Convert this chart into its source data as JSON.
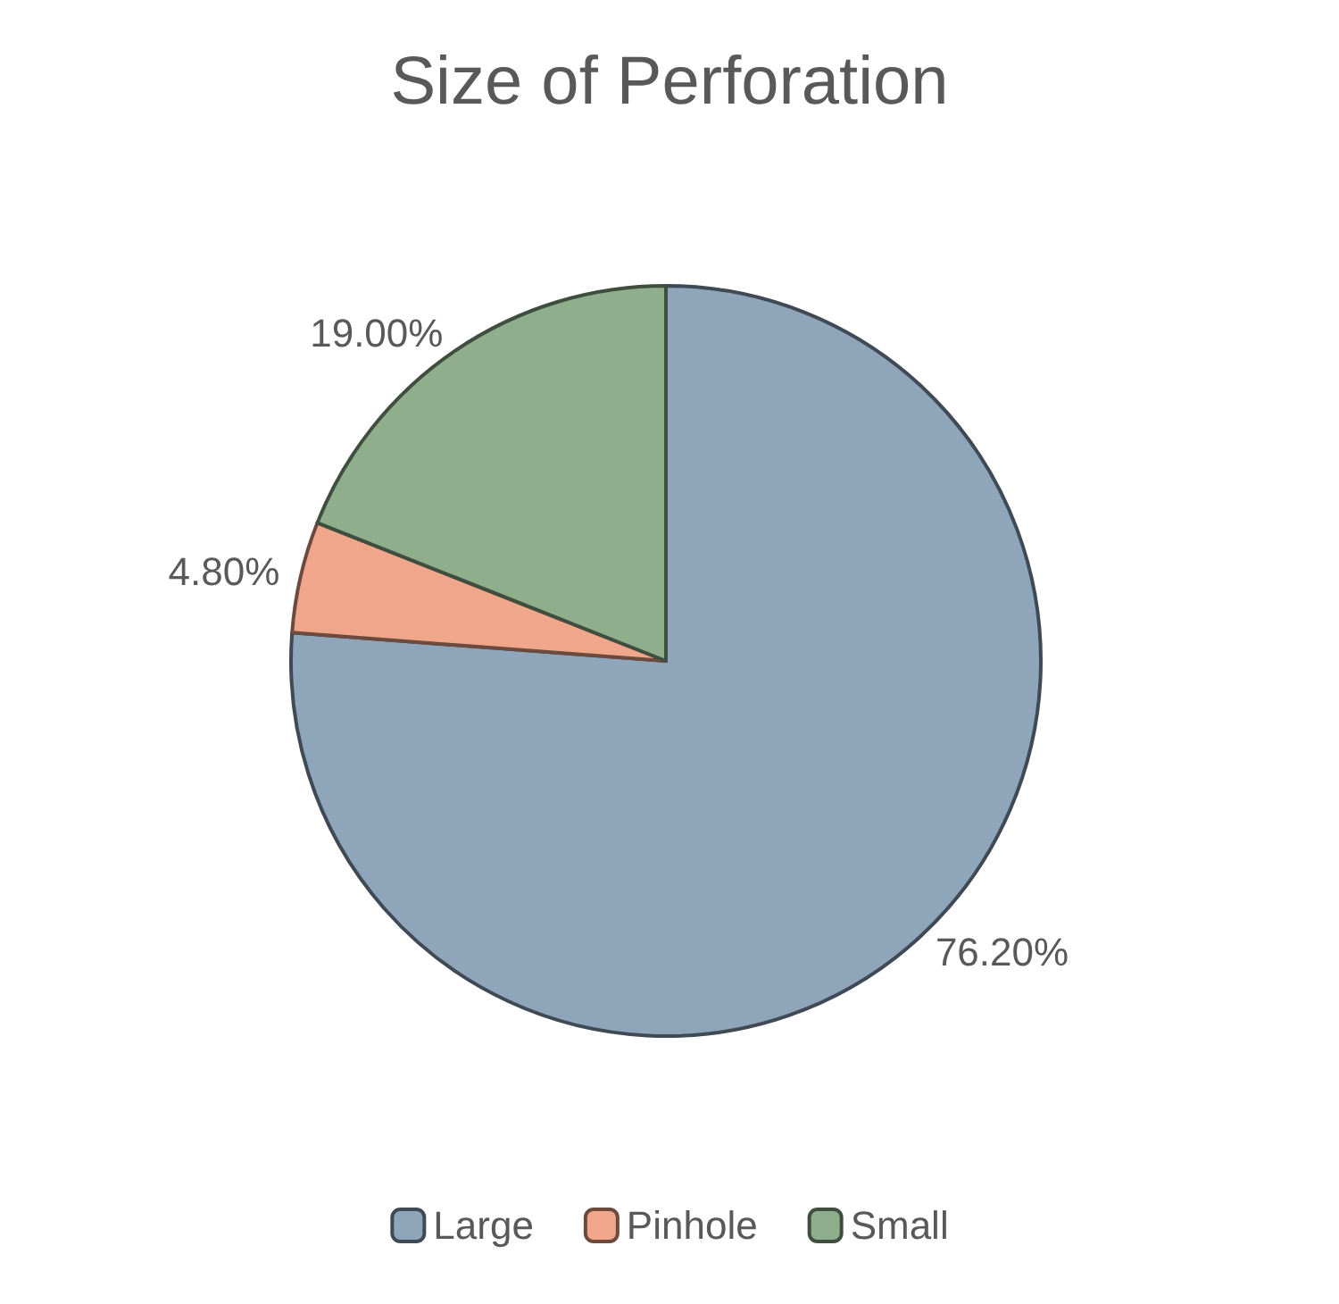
{
  "chart_data": {
    "type": "pie",
    "title": "Size of Perforation",
    "categories": [
      "Large",
      "Pinhole",
      "Small"
    ],
    "values": [
      76.2,
      4.8,
      19.0
    ],
    "value_labels": [
      "76.20%",
      "4.80%",
      "19.00%"
    ],
    "colors": [
      "#8ea5ba",
      "#f0a68a",
      "#8fae8c"
    ],
    "legend": "bottom"
  }
}
